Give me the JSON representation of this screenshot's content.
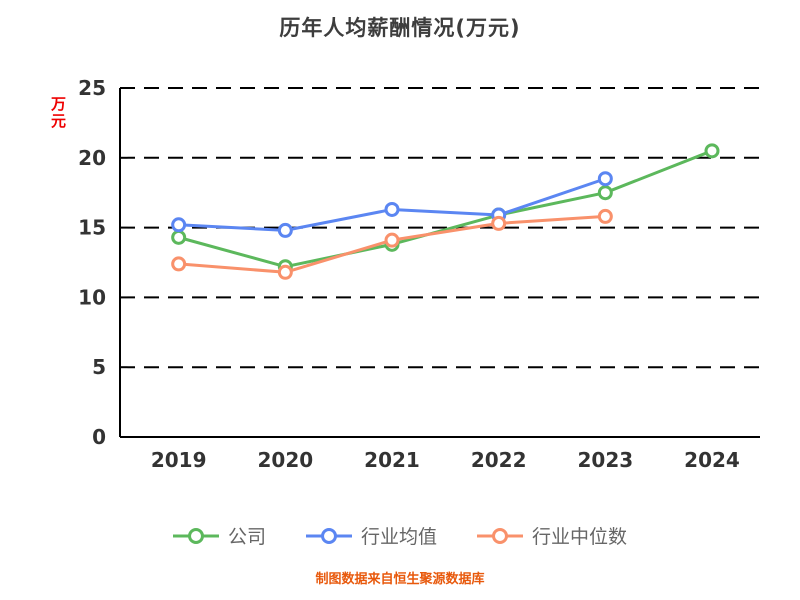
{
  "chart_data": {
    "type": "line",
    "title": "历年人均薪酬情况(万元)",
    "ylabel": "万元",
    "footer": "制图数据来自恒生聚源数据库",
    "categories": [
      "2019",
      "2020",
      "2021",
      "2022",
      "2023",
      "2024"
    ],
    "ylim": [
      0,
      25
    ],
    "yticks": [
      0,
      5,
      10,
      15,
      20,
      25
    ],
    "grid": true,
    "grid_style": "dashed",
    "legend_position": "bottom",
    "series": [
      {
        "name": "公司",
        "color": "#5CB85C",
        "values": [
          14.3,
          12.2,
          13.8,
          15.9,
          17.5,
          20.5
        ]
      },
      {
        "name": "行业均值",
        "color": "#5B86F2",
        "values": [
          15.2,
          14.8,
          16.3,
          15.9,
          18.5,
          null
        ]
      },
      {
        "name": "行业中位数",
        "color": "#F9916B",
        "values": [
          12.4,
          11.8,
          14.1,
          15.3,
          15.8,
          null
        ]
      }
    ]
  }
}
